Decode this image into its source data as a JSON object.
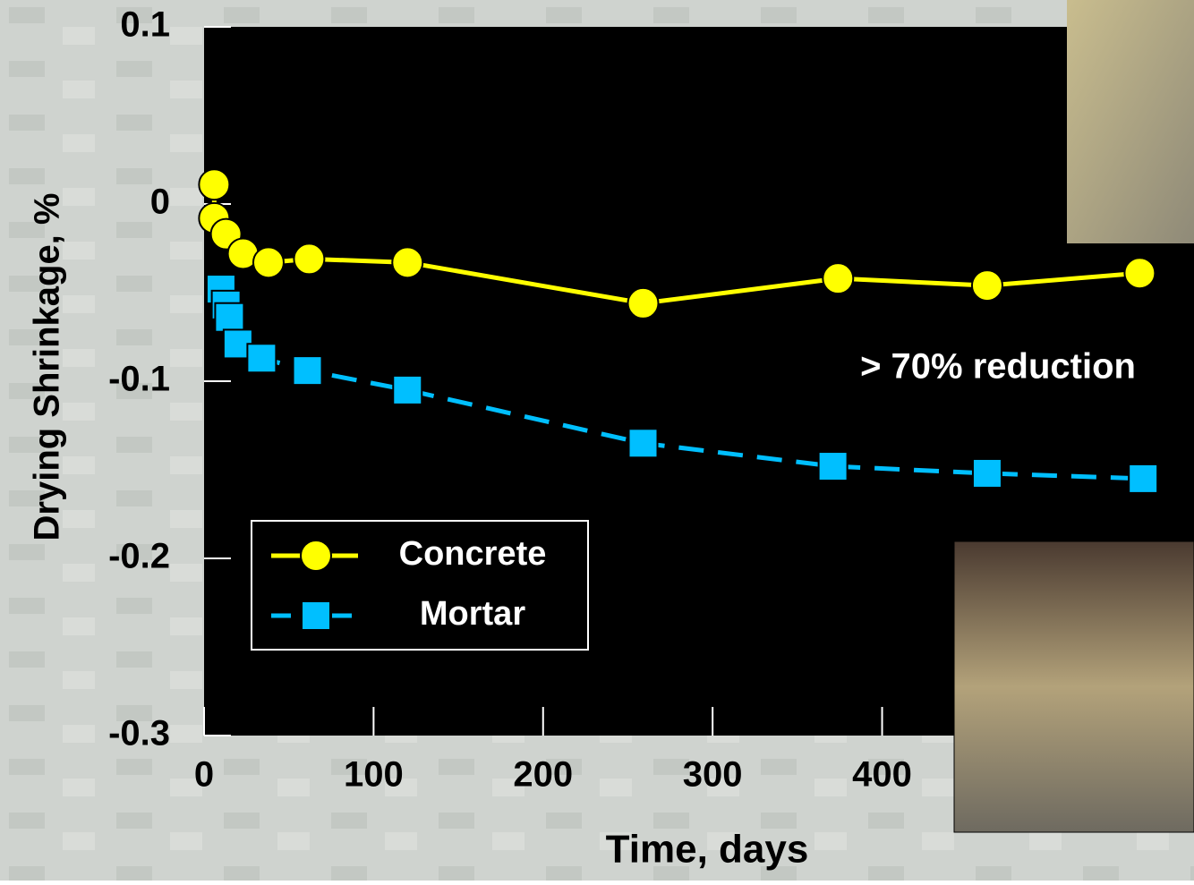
{
  "chart_data": {
    "type": "line",
    "y_label": "Drying Shrinkage, %",
    "x_label": "Time, days",
    "annotation": "> 70% reduction",
    "xlim": [
      0,
      584
    ],
    "xticks": [
      0,
      100,
      200,
      300,
      400
    ],
    "ylim": [
      -0.3,
      0.1
    ],
    "yticks": [
      0.1,
      0,
      -0.1,
      -0.2,
      -0.3
    ],
    "legend": "lower-left",
    "series": [
      {
        "name": "Concrete",
        "color": "#ffff00",
        "marker": "circle",
        "dashed": false,
        "x": [
          6,
          6,
          13,
          23,
          38,
          62,
          120,
          259,
          374,
          462,
          552
        ],
        "values": [
          0.011,
          -0.008,
          -0.017,
          -0.028,
          -0.033,
          -0.031,
          -0.033,
          -0.056,
          -0.042,
          -0.046,
          -0.039
        ]
      },
      {
        "name": "Mortar",
        "color": "#00bfff",
        "marker": "square",
        "dashed": true,
        "x": [
          10,
          13,
          15,
          20,
          34,
          61,
          120,
          259,
          371,
          462,
          554
        ],
        "values": [
          -0.048,
          -0.057,
          -0.064,
          -0.079,
          -0.087,
          -0.094,
          -0.105,
          -0.135,
          -0.148,
          -0.152,
          -0.155
        ]
      }
    ]
  }
}
